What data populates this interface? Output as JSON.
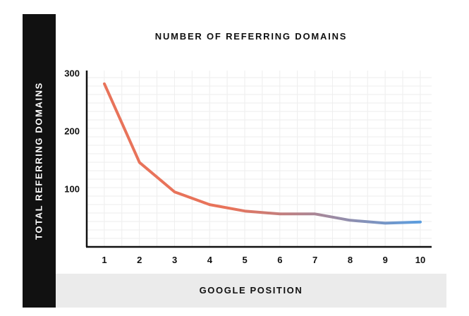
{
  "chart_data": {
    "type": "line",
    "title": "NUMBER OF REFERRING DOMAINS",
    "xlabel": "GOOGLE POSITION",
    "ylabel": "TOTAL REFERRING DOMAINS",
    "x": [
      1,
      2,
      3,
      4,
      5,
      6,
      7,
      8,
      9,
      10
    ],
    "x_tick_labels": [
      "1",
      "2",
      "3",
      "4",
      "5",
      "6",
      "7",
      "8",
      "9",
      "10"
    ],
    "y_ticks": [
      100,
      200,
      300
    ],
    "y_tick_labels": [
      "100",
      "200",
      "300"
    ],
    "ylim": [
      0,
      300
    ],
    "grid": true,
    "series": [
      {
        "values": [
          282,
          146,
          95,
          73,
          62,
          57,
          57,
          46,
          41,
          43
        ],
        "color_start": "#e8735a",
        "color_end": "#5b9ee0"
      }
    ]
  }
}
